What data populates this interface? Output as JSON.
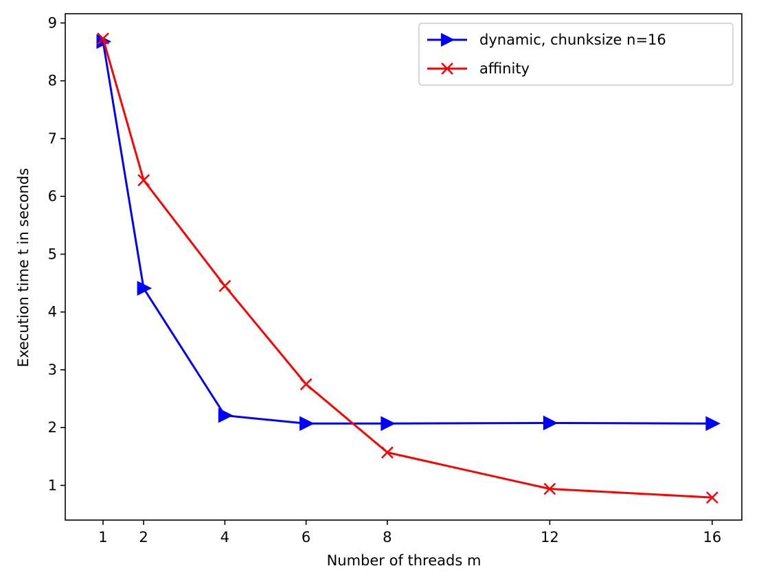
{
  "chart_data": {
    "type": "line",
    "title": "",
    "xlabel": "Number of threads m",
    "ylabel": "Execution time t in seconds",
    "x": [
      1,
      2,
      4,
      6,
      8,
      12,
      16
    ],
    "xticks": [
      "1",
      "2",
      "4",
      "6",
      "8",
      "12",
      "16"
    ],
    "yticks": [
      "1",
      "2",
      "3",
      "4",
      "5",
      "6",
      "7",
      "8",
      "9"
    ],
    "xlim": [
      0.07,
      16.73
    ],
    "ylim": [
      0.4,
      9.16
    ],
    "grid": false,
    "legend_position": "top-right",
    "series": [
      {
        "name": "dynamic, chunksize n=16",
        "color": "#0000ff",
        "marker": "triangle-right",
        "values": [
          8.68,
          4.41,
          2.21,
          2.07,
          2.07,
          2.08,
          2.07
        ]
      },
      {
        "name": "affinity",
        "color": "#ff0000",
        "marker": "x",
        "values": [
          8.73,
          6.28,
          4.45,
          2.75,
          1.57,
          0.94,
          0.79
        ]
      }
    ]
  }
}
